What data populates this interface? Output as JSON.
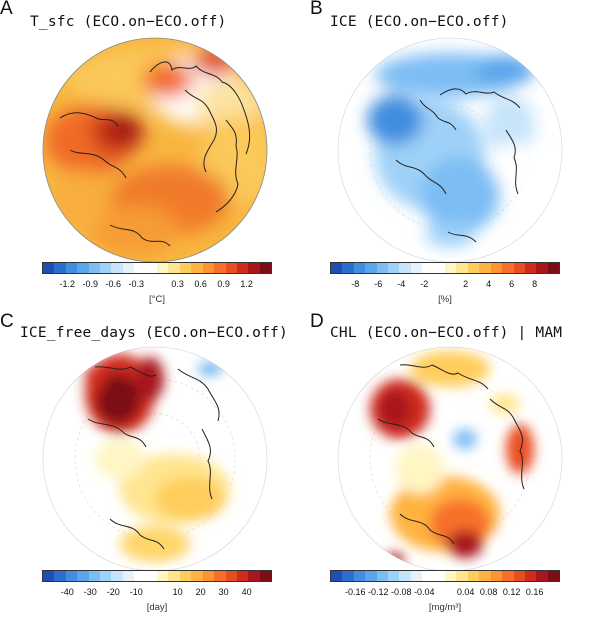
{
  "panels": [
    {
      "letter": "A",
      "title": "T_sfc (ECO.on−ECO.off)",
      "unit": "[°C]",
      "ticks": [
        "-1.2",
        "-0.9",
        "-0.6",
        "-0.3",
        "0.3",
        "0.6",
        "0.9",
        "1.2"
      ]
    },
    {
      "letter": "B",
      "title": "ICE (ECO.on−ECO.off)",
      "unit": "[%]",
      "ticks": [
        "-8",
        "-6",
        "-4",
        "-2",
        "2",
        "4",
        "6",
        "8"
      ]
    },
    {
      "letter": "C",
      "title": "ICE_free_days (ECO.on−ECO.off)",
      "unit": "[day]",
      "ticks": [
        "-40",
        "-30",
        "-20",
        "-10",
        "10",
        "20",
        "30",
        "40"
      ]
    },
    {
      "letter": "D",
      "title": "CHL (ECO.on−ECO.off) | MAM",
      "unit": "[mg/m³]",
      "ticks": [
        "-0.16",
        "-0.12",
        "-0.08",
        "-0.04",
        "0.04",
        "0.08",
        "0.12",
        "0.16"
      ]
    }
  ],
  "colors": {
    "scale": [
      "#1f4fb5",
      "#2c6ed0",
      "#3f8ee0",
      "#5aa6ec",
      "#7cbdf4",
      "#9fd1f8",
      "#c6e4fb",
      "#e6f3fd",
      "#ffffff",
      "#ffffff",
      "#fff6c4",
      "#ffe58f",
      "#ffcd5c",
      "#ffb23f",
      "#ff9233",
      "#f7702a",
      "#e84e22",
      "#cf2c1e",
      "#a8161a",
      "#7c0d14"
    ],
    "land_line": "#222222"
  }
}
